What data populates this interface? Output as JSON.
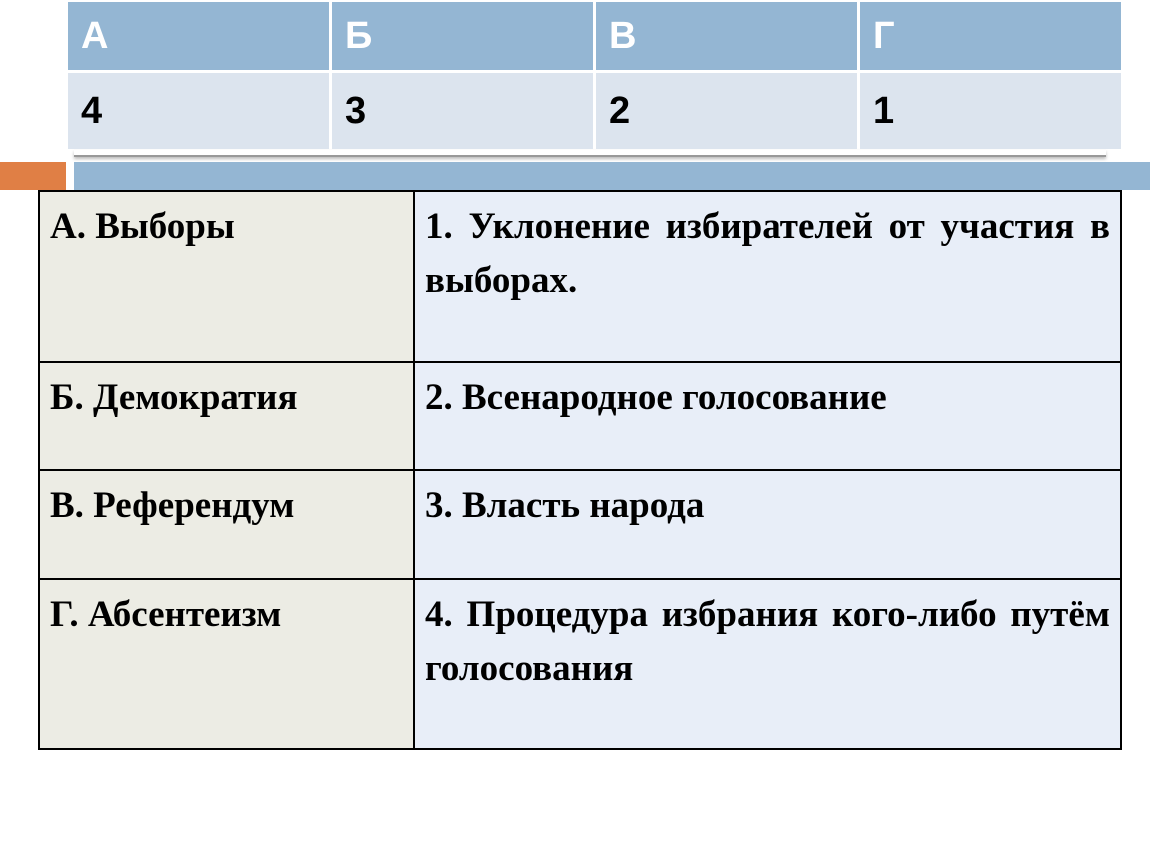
{
  "answer_table": {
    "headers": [
      "А",
      "Б",
      "В",
      "Г"
    ],
    "values": [
      "4",
      "3",
      "2",
      "1"
    ]
  },
  "colors": {
    "header_bg": "#94b6d3",
    "row_bg": "#dce4ee",
    "accent_orange": "#e07f45",
    "left_cell_bg": "#ecece4",
    "right_cell_bg": "#e8eef8"
  },
  "match_table": {
    "rows": [
      {
        "term": "А.  Выборы",
        "definition": "1. Уклонение избирателей от участия в выборах."
      },
      {
        "term": "Б. Демократия",
        "definition": "2. Всенародное голосование"
      },
      {
        "term": "В. Референдум",
        "definition": "3. Власть народа"
      },
      {
        "term": "Г. Абсентеизм",
        "definition": "4. Процедура избрания кого-либо путём голосования"
      }
    ]
  }
}
